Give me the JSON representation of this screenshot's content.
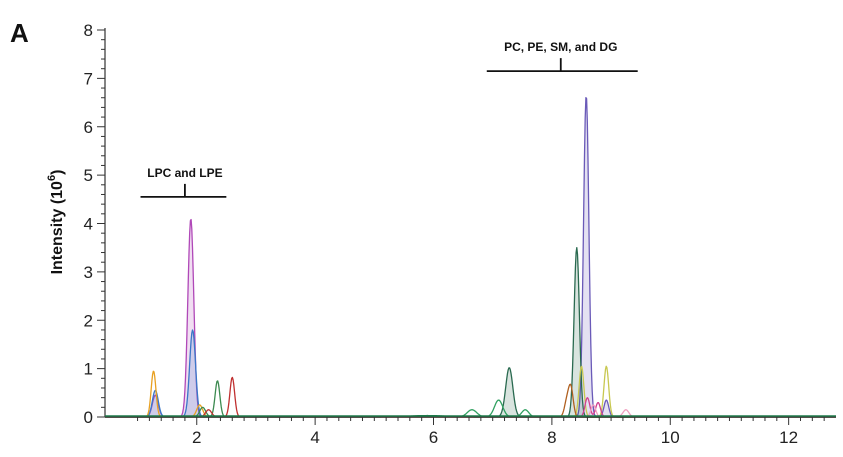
{
  "panel_label": "A",
  "chart_data": {
    "type": "line",
    "title": "",
    "xlabel": "",
    "ylabel": "Intensity (10",
    "ylabel_sup": "6",
    "ylabel_close": ")",
    "xlim": [
      0.45,
      12.8
    ],
    "ylim": [
      0,
      8
    ],
    "x_ticks": [
      2,
      4,
      6,
      8,
      10,
      12
    ],
    "y_ticks": [
      0,
      1,
      2,
      3,
      4,
      5,
      6,
      7,
      8
    ],
    "grid": false,
    "legend": "none",
    "annotations": [
      {
        "text": "LPC and LPE",
        "x_start": 1.05,
        "x_end": 2.5,
        "x_mid": 1.8,
        "y": 4.55
      },
      {
        "text": "PC, PE, SM, and DG",
        "x_start": 6.9,
        "x_end": 9.45,
        "x_mid": 8.15,
        "y": 7.15
      }
    ],
    "series": [
      {
        "color": "#b048b8",
        "fill": true,
        "peaks": [
          {
            "x": 1.9,
            "h": 4.1,
            "w": 0.05
          },
          {
            "x": 1.3,
            "h": 0.45,
            "w": 0.05
          }
        ]
      },
      {
        "color": "#3a78c8",
        "fill": true,
        "peaks": [
          {
            "x": 1.93,
            "h": 1.8,
            "w": 0.05
          },
          {
            "x": 1.3,
            "h": 0.55,
            "w": 0.05
          }
        ]
      },
      {
        "color": "#e8a020",
        "fill": false,
        "peaks": [
          {
            "x": 1.27,
            "h": 0.95,
            "w": 0.04
          },
          {
            "x": 2.05,
            "h": 0.25,
            "w": 0.05
          }
        ]
      },
      {
        "color": "#3c8a50",
        "fill": false,
        "peaks": [
          {
            "x": 2.35,
            "h": 0.75,
            "w": 0.04
          },
          {
            "x": 2.1,
            "h": 0.2,
            "w": 0.05
          }
        ]
      },
      {
        "color": "#c03030",
        "fill": false,
        "peaks": [
          {
            "x": 2.6,
            "h": 0.82,
            "w": 0.04
          },
          {
            "x": 2.2,
            "h": 0.15,
            "w": 0.05
          }
        ]
      },
      {
        "color": "#6a5ab8",
        "fill": true,
        "peaks": [
          {
            "x": 8.58,
            "h": 6.65,
            "w": 0.045
          },
          {
            "x": 8.92,
            "h": 0.35,
            "w": 0.04
          }
        ]
      },
      {
        "color": "#2a6a50",
        "fill": true,
        "peaks": [
          {
            "x": 8.42,
            "h": 3.5,
            "w": 0.045
          },
          {
            "x": 7.28,
            "h": 1.02,
            "w": 0.06
          }
        ]
      },
      {
        "color": "#c8c850",
        "fill": false,
        "peaks": [
          {
            "x": 8.92,
            "h": 1.05,
            "w": 0.04
          },
          {
            "x": 8.5,
            "h": 1.05,
            "w": 0.04
          }
        ]
      },
      {
        "color": "#30a060",
        "fill": false,
        "peaks": [
          {
            "x": 7.1,
            "h": 0.35,
            "w": 0.07
          },
          {
            "x": 6.65,
            "h": 0.15,
            "w": 0.08
          },
          {
            "x": 7.55,
            "h": 0.15,
            "w": 0.06
          }
        ]
      },
      {
        "color": "#d04090",
        "fill": false,
        "peaks": [
          {
            "x": 8.6,
            "h": 0.4,
            "w": 0.04
          },
          {
            "x": 8.78,
            "h": 0.3,
            "w": 0.04
          }
        ]
      },
      {
        "color": "#b06020",
        "fill": false,
        "peaks": [
          {
            "x": 8.32,
            "h": 0.6,
            "w": 0.04
          },
          {
            "x": 8.25,
            "h": 0.3,
            "w": 0.04
          }
        ]
      },
      {
        "color": "#f0a0c0",
        "fill": false,
        "peaks": [
          {
            "x": 9.25,
            "h": 0.15,
            "w": 0.05
          },
          {
            "x": 8.7,
            "h": 0.25,
            "w": 0.04
          }
        ]
      },
      {
        "color": "#1f7a4a",
        "fill": false,
        "peaks": [
          {
            "x": 5.9,
            "h": 0.03,
            "w": 0.3
          }
        ]
      }
    ]
  }
}
